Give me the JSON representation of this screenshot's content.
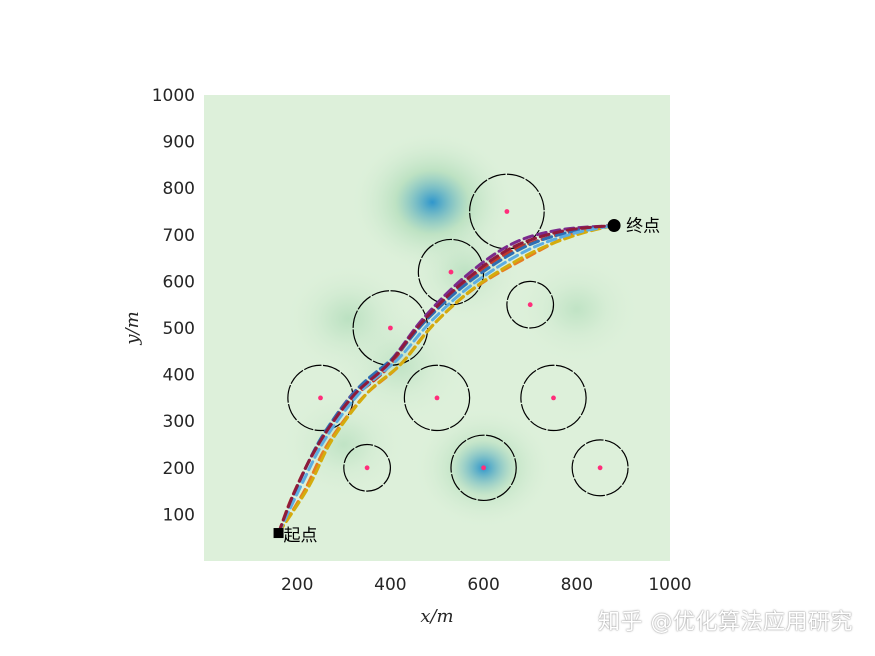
{
  "chart_data": {
    "type": "scatter",
    "title": "",
    "xlabel": "x/m",
    "ylabel": "y/m",
    "xlim": [
      0,
      1000
    ],
    "ylim": [
      0,
      1000
    ],
    "xticks": [
      "200",
      "400",
      "600",
      "800",
      "1000"
    ],
    "yticks": [
      "100",
      "200",
      "300",
      "400",
      "500",
      "600",
      "700",
      "800",
      "900",
      "1000"
    ],
    "grid": false,
    "legend": "none",
    "terrain": [
      {
        "x": 490,
        "y": 770,
        "depth": 1.0,
        "spread": 70
      },
      {
        "x": 600,
        "y": 200,
        "depth": 0.7,
        "spread": 60
      },
      {
        "x": 310,
        "y": 520,
        "depth": 0.35,
        "spread": 55
      },
      {
        "x": 560,
        "y": 620,
        "depth": 0.3,
        "spread": 50
      },
      {
        "x": 420,
        "y": 420,
        "depth": 0.25,
        "spread": 60
      },
      {
        "x": 800,
        "y": 540,
        "depth": 0.25,
        "spread": 55
      },
      {
        "x": 300,
        "y": 250,
        "depth": 0.25,
        "spread": 55
      }
    ],
    "obstacles": [
      {
        "x": 650,
        "y": 750,
        "r": 80
      },
      {
        "x": 530,
        "y": 620,
        "r": 70
      },
      {
        "x": 700,
        "y": 550,
        "r": 50
      },
      {
        "x": 400,
        "y": 500,
        "r": 80
      },
      {
        "x": 250,
        "y": 350,
        "r": 70
      },
      {
        "x": 500,
        "y": 350,
        "r": 70
      },
      {
        "x": 750,
        "y": 350,
        "r": 70
      },
      {
        "x": 350,
        "y": 200,
        "r": 50
      },
      {
        "x": 600,
        "y": 200,
        "r": 70
      },
      {
        "x": 850,
        "y": 200,
        "r": 60
      }
    ],
    "start": {
      "x": 160,
      "y": 60,
      "label": "起点"
    },
    "goal": {
      "x": 880,
      "y": 720,
      "label": "终点"
    },
    "colors": {
      "obstacle_edge": "#000000",
      "obstacle_center": "#ff2d7a",
      "terrain_low": "#ddf0da",
      "terrain_mid": "#a9d9b4",
      "terrain_deep": "#2f96cc"
    },
    "paths": [
      {
        "color": "#7b2a8c",
        "points": [
          [
            160,
            60
          ],
          [
            200,
            160
          ],
          [
            250,
            260
          ],
          [
            320,
            360
          ],
          [
            400,
            430
          ],
          [
            470,
            520
          ],
          [
            560,
            610
          ],
          [
            660,
            680
          ],
          [
            760,
            710
          ],
          [
            880,
            720
          ]
        ]
      },
      {
        "color": "#c0392b",
        "points": [
          [
            160,
            60
          ],
          [
            190,
            140
          ],
          [
            240,
            240
          ],
          [
            310,
            340
          ],
          [
            390,
            410
          ],
          [
            460,
            500
          ],
          [
            550,
            590
          ],
          [
            650,
            660
          ],
          [
            760,
            700
          ],
          [
            880,
            720
          ]
        ]
      },
      {
        "color": "#2e6fb3",
        "points": [
          [
            160,
            60
          ],
          [
            205,
            170
          ],
          [
            255,
            270
          ],
          [
            330,
            370
          ],
          [
            410,
            440
          ],
          [
            480,
            520
          ],
          [
            570,
            600
          ],
          [
            680,
            670
          ],
          [
            780,
            705
          ],
          [
            880,
            720
          ]
        ]
      },
      {
        "color": "#e67e22",
        "points": [
          [
            160,
            60
          ],
          [
            215,
            150
          ],
          [
            265,
            250
          ],
          [
            340,
            350
          ],
          [
            420,
            420
          ],
          [
            490,
            505
          ],
          [
            580,
            585
          ],
          [
            690,
            650
          ],
          [
            790,
            700
          ],
          [
            880,
            720
          ]
        ]
      },
      {
        "color": "#d4ac0d",
        "points": [
          [
            160,
            60
          ],
          [
            225,
            160
          ],
          [
            275,
            260
          ],
          [
            350,
            360
          ],
          [
            425,
            425
          ],
          [
            495,
            510
          ],
          [
            585,
            590
          ],
          [
            700,
            660
          ],
          [
            800,
            700
          ],
          [
            880,
            720
          ]
        ]
      },
      {
        "color": "#5dade2",
        "points": [
          [
            160,
            60
          ],
          [
            210,
            165
          ],
          [
            262,
            265
          ],
          [
            338,
            365
          ],
          [
            418,
            435
          ],
          [
            488,
            515
          ],
          [
            578,
            595
          ],
          [
            690,
            665
          ],
          [
            790,
            702
          ],
          [
            880,
            720
          ]
        ]
      },
      {
        "color": "#8e1b3c",
        "points": [
          [
            160,
            60
          ],
          [
            195,
            150
          ],
          [
            245,
            250
          ],
          [
            318,
            352
          ],
          [
            398,
            425
          ],
          [
            468,
            512
          ],
          [
            558,
            600
          ],
          [
            660,
            672
          ],
          [
            770,
            708
          ],
          [
            880,
            720
          ]
        ]
      }
    ]
  },
  "watermark": "知乎 @优化算法应用研究"
}
